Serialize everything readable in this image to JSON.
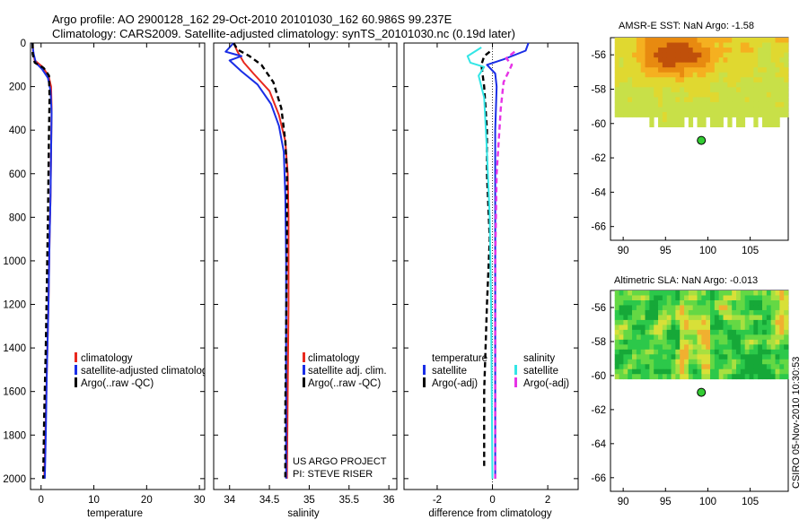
{
  "header": {
    "title_line1": "Argo profile: AO 2900128_162 29-Oct-2010 20101030_162 60.986S 99.237E",
    "title_line2": "Climatology: CARS2009. Satellite-adjusted climatology: synTS_20101030.nc (0.19d later)"
  },
  "colors": {
    "climatology": "#e8281e",
    "satellite": "#1a2ee6",
    "argo": "#000000",
    "sal_satellite": "#33e6e6",
    "sal_argo": "#e633e6",
    "argo_marker": "#33cc33"
  },
  "chart_data": [
    {
      "id": "temperature",
      "type": "line",
      "xlabel": "temperature",
      "ylabel": "",
      "xlim": [
        -2,
        31
      ],
      "ylim": [
        2050,
        0
      ],
      "x_ticks": [
        0,
        10,
        20,
        30
      ],
      "x_tick_labels": [
        "0",
        "10",
        "20",
        "30"
      ],
      "y_ticks": [
        0,
        200,
        400,
        600,
        800,
        1000,
        1200,
        1400,
        1600,
        1800,
        2000
      ],
      "y_tick_labels": [
        "0",
        "200",
        "400",
        "600",
        "800",
        "1000",
        "1200",
        "1400",
        "1600",
        "1800",
        "2000"
      ],
      "legend_entries": [
        "climatology",
        "satellite-adjusted climatology",
        "Argo(..raw -QC)"
      ],
      "series": [
        {
          "name": "climatology",
          "color_key": "climatology",
          "dash": false,
          "points": [
            [
              -1.6,
              0
            ],
            [
              -1.5,
              40
            ],
            [
              -1.2,
              80
            ],
            [
              0.3,
              110
            ],
            [
              1.4,
              150
            ],
            [
              1.9,
              200
            ],
            [
              2.0,
              300
            ],
            [
              1.9,
              500
            ],
            [
              1.8,
              700
            ],
            [
              1.6,
              900
            ],
            [
              1.4,
              1200
            ],
            [
              1.1,
              1500
            ],
            [
              0.8,
              1800
            ],
            [
              0.6,
              2000
            ]
          ]
        },
        {
          "name": "satellite-adjusted climatology",
          "color_key": "satellite",
          "dash": false,
          "points": [
            [
              -1.7,
              0
            ],
            [
              -1.4,
              50
            ],
            [
              -1.0,
              90
            ],
            [
              0.2,
              120
            ],
            [
              1.3,
              160
            ],
            [
              1.8,
              220
            ],
            [
              2.0,
              320
            ],
            [
              1.9,
              500
            ],
            [
              1.8,
              700
            ],
            [
              1.6,
              900
            ],
            [
              1.4,
              1200
            ],
            [
              1.1,
              1500
            ],
            [
              0.9,
              1800
            ],
            [
              0.7,
              2000
            ]
          ]
        },
        {
          "name": "Argo(..raw -QC)",
          "color_key": "argo",
          "dash": true,
          "points": [
            [
              -1.6,
              0
            ],
            [
              -1.6,
              50
            ],
            [
              -1.2,
              90
            ],
            [
              0.5,
              115
            ],
            [
              1.5,
              150
            ],
            [
              1.6,
              250
            ],
            [
              1.5,
              400
            ],
            [
              1.4,
              600
            ],
            [
              1.3,
              800
            ],
            [
              1.1,
              1100
            ],
            [
              0.9,
              1400
            ],
            [
              0.6,
              1700
            ],
            [
              0.4,
              2000
            ]
          ]
        }
      ]
    },
    {
      "id": "salinity",
      "type": "line",
      "xlabel": "salinity",
      "ylabel": "",
      "xlim": [
        33.8,
        36.1
      ],
      "ylim": [
        2050,
        0
      ],
      "x_ticks": [
        34,
        34.5,
        35,
        35.5,
        36
      ],
      "x_tick_labels": [
        "34",
        "34.5",
        "35",
        "35.5",
        "36"
      ],
      "legend_entries": [
        "climatology",
        "satellite adj. clim.",
        "Argo(..raw -QC)"
      ],
      "series": [
        {
          "name": "climatology",
          "color_key": "climatology",
          "dash": false,
          "points": [
            [
              34.05,
              0
            ],
            [
              34.1,
              40
            ],
            [
              34.18,
              90
            ],
            [
              34.3,
              140
            ],
            [
              34.5,
              220
            ],
            [
              34.62,
              330
            ],
            [
              34.7,
              450
            ],
            [
              34.73,
              600
            ],
            [
              34.74,
              800
            ],
            [
              34.74,
              1200
            ],
            [
              34.73,
              1600
            ],
            [
              34.72,
              2000
            ]
          ]
        },
        {
          "name": "satellite adj. clim.",
          "color_key": "satellite",
          "dash": false,
          "points": [
            [
              34.05,
              0
            ],
            [
              33.95,
              40
            ],
            [
              34.15,
              60
            ],
            [
              34.0,
              80
            ],
            [
              34.15,
              130
            ],
            [
              34.35,
              190
            ],
            [
              34.52,
              280
            ],
            [
              34.62,
              380
            ],
            [
              34.68,
              500
            ],
            [
              34.7,
              700
            ],
            [
              34.71,
              1000
            ],
            [
              34.71,
              1500
            ],
            [
              34.71,
              2000
            ]
          ]
        },
        {
          "name": "Argo(..raw -QC)",
          "color_key": "argo",
          "dash": true,
          "points": [
            [
              34.05,
              0
            ],
            [
              34.1,
              30
            ],
            [
              34.25,
              60
            ],
            [
              34.4,
              100
            ],
            [
              34.55,
              180
            ],
            [
              34.65,
              300
            ],
            [
              34.7,
              450
            ],
            [
              34.72,
              600
            ],
            [
              34.72,
              900
            ],
            [
              34.71,
              1300
            ],
            [
              34.7,
              1700
            ],
            [
              34.7,
              2000
            ]
          ]
        }
      ],
      "credits": [
        "US ARGO PROJECT",
        "PI: STEVE RISER"
      ]
    },
    {
      "id": "difference",
      "type": "line",
      "xlabel": "difference from climatology",
      "ylabel": "",
      "xlim": [
        -3.2,
        3.1
      ],
      "ylim": [
        2050,
        0
      ],
      "x_ticks": [
        -2,
        0,
        2
      ],
      "x_tick_labels": [
        "-2",
        "0",
        "2"
      ],
      "legend_groups": {
        "temperature": {
          "heading": "temperature",
          "entries": [
            "satellite",
            "Argo(-adj)"
          ]
        },
        "salinity": {
          "heading": "salinity",
          "entries": [
            "satellite",
            "Argo(-adj)"
          ]
        }
      },
      "series": [
        {
          "name": "temperature satellite",
          "color_key": "satellite",
          "dash": false,
          "points": [
            [
              1.3,
              0
            ],
            [
              1.2,
              35
            ],
            [
              0.4,
              75
            ],
            [
              -0.2,
              100
            ],
            [
              0.1,
              140
            ],
            [
              0.15,
              200
            ],
            [
              0.1,
              400
            ],
            [
              0.1,
              700
            ],
            [
              0.1,
              1000
            ],
            [
              0.1,
              1400
            ],
            [
              0.1,
              2000
            ]
          ]
        },
        {
          "name": "temperature Argo(-adj)",
          "color_key": "argo",
          "dash": true,
          "points": [
            [
              -0.1,
              40
            ],
            [
              -0.3,
              60
            ],
            [
              -0.4,
              100
            ],
            [
              -0.3,
              200
            ],
            [
              -0.2,
              400
            ],
            [
              -0.2,
              600
            ],
            [
              -0.1,
              900
            ],
            [
              -0.2,
              1200
            ],
            [
              -0.3,
              1600
            ],
            [
              -0.3,
              1950
            ]
          ]
        },
        {
          "name": "salinity satellite",
          "color_key": "sal_satellite",
          "dash": false,
          "points": [
            [
              -0.4,
              20
            ],
            [
              -0.9,
              60
            ],
            [
              -0.8,
              90
            ],
            [
              -0.3,
              110
            ],
            [
              -0.5,
              150
            ],
            [
              -0.3,
              250
            ],
            [
              -0.2,
              500
            ],
            [
              -0.1,
              800
            ],
            [
              -0.05,
              1200
            ],
            [
              0.0,
              2000
            ]
          ]
        },
        {
          "name": "salinity Argo(-adj)",
          "color_key": "sal_argo",
          "dash": true,
          "points": [
            [
              0.8,
              40
            ],
            [
              0.5,
              70
            ],
            [
              0.7,
              100
            ],
            [
              0.4,
              180
            ],
            [
              0.3,
              300
            ],
            [
              0.15,
              600
            ],
            [
              0.1,
              1000
            ],
            [
              0.1,
              1500
            ],
            [
              0.1,
              2000
            ]
          ]
        }
      ]
    },
    {
      "id": "sst_map",
      "type": "heatmap",
      "title": "AMSR-E SST: NaN Argo: -1.58",
      "xlim": [
        88.5,
        109.5
      ],
      "ylim": [
        -66.8,
        -55
      ],
      "x_ticks": [
        90,
        95,
        100,
        105
      ],
      "x_tick_labels": [
        "90",
        "95",
        "100",
        "105"
      ],
      "y_ticks": [
        -56,
        -58,
        -60,
        -62,
        -64,
        -66
      ],
      "y_tick_labels": [
        "-56",
        "-58",
        "-60",
        "-62",
        "-64",
        "-66"
      ],
      "argo_position": {
        "lon": 99.237,
        "lat": -60.986
      },
      "data_extent": {
        "lon": [
          89.0,
          109.5
        ],
        "lat": [
          -60.2,
          -55.0
        ]
      },
      "palette": [
        "#7a2a00",
        "#c0500a",
        "#e88a10",
        "#f5b020",
        "#e0d830",
        "#c8e048"
      ]
    },
    {
      "id": "sla_map",
      "type": "heatmap",
      "title": "Altimetric SLA: NaN Argo: -0.013",
      "xlim": [
        88.5,
        109.5
      ],
      "ylim": [
        -66.8,
        -55
      ],
      "x_ticks": [
        90,
        95,
        100,
        105
      ],
      "x_tick_labels": [
        "90",
        "95",
        "100",
        "105"
      ],
      "y_ticks": [
        -56,
        -58,
        -60,
        -62,
        -64,
        -66
      ],
      "y_tick_labels": [
        "-56",
        "-58",
        "-60",
        "-62",
        "-64",
        "-66"
      ],
      "argo_position": {
        "lon": 99.237,
        "lat": -60.986
      },
      "data_extent": {
        "lon": [
          89.0,
          109.5
        ],
        "lat": [
          -60.2,
          -55.0
        ]
      },
      "palette": [
        "#16a838",
        "#2cc84a",
        "#64d844",
        "#a8e040",
        "#d8e038",
        "#f0b030"
      ]
    }
  ],
  "footer": {
    "stamp": "CSIRO 05-Nov-2010 10:30:53"
  }
}
